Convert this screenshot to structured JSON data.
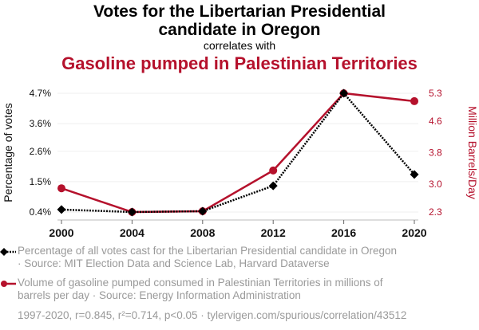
{
  "title": {
    "line1": "Votes for the Libertarian Presidential",
    "line2": "candidate in Oregon",
    "connector": "correlates with",
    "line3": "Gasoline pumped in Palestinian Territories"
  },
  "colors": {
    "series1": "#000000",
    "series2": "#b5112c",
    "grid": "#efefef",
    "legend_text": "#9a9a9a"
  },
  "legend": {
    "series1_line1": "Percentage of all votes cast for the Libertarian Presidential candidate in Oregon",
    "series1_line2": "· Source: MIT Election Data and Science Lab, Harvard Dataverse",
    "series2_line1": "Volume of gasoline pumped consumed in Palestinian Territories in millions of",
    "series2_line2": "barrels per day · Source: Energy Information Administration"
  },
  "footer": "1997-2020, r=0.845, r²=0.714, p<0.05 · tylervigen.com/spurious/correlation/43512",
  "chart_data": {
    "type": "line",
    "title": "Votes for the Libertarian Presidential candidate in Oregon correlates with Gasoline pumped in Palestinian Territories",
    "x": [
      "2000",
      "2004",
      "2008",
      "2012",
      "2016",
      "2020"
    ],
    "xlabel": "",
    "ylabel": "Percentage of votes",
    "y2label": "Million Barrels/Day",
    "yticks": [
      "4.7%",
      "3.6%",
      "2.6%",
      "1.5%",
      "0.4%"
    ],
    "ytick_values": [
      4.7,
      3.6,
      2.6,
      1.5,
      0.4
    ],
    "y2ticks": [
      "5.3",
      "4.6",
      "3.8",
      "3.0",
      "2.3"
    ],
    "y2tick_values": [
      5.3,
      4.6,
      3.8,
      3.0,
      2.3
    ],
    "ylim": [
      0.4,
      4.7
    ],
    "y2lim": [
      2.3,
      5.3
    ],
    "grid": true,
    "legend_position": "bottom",
    "series": [
      {
        "name": "Percentage of all votes cast for the Libertarian Presidential candidate in Oregon",
        "axis": "left",
        "style": "dotted",
        "marker": "diamond",
        "color": "#000000",
        "values": [
          0.49,
          0.4,
          0.43,
          1.35,
          4.7,
          1.76
        ]
      },
      {
        "name": "Volume of gasoline pumped consumed in Palestinian Territories (million barrels/day)",
        "axis": "right",
        "style": "solid",
        "marker": "circle",
        "color": "#b5112c",
        "values": [
          2.9,
          2.3,
          2.32,
          3.35,
          5.3,
          5.1
        ]
      }
    ]
  }
}
